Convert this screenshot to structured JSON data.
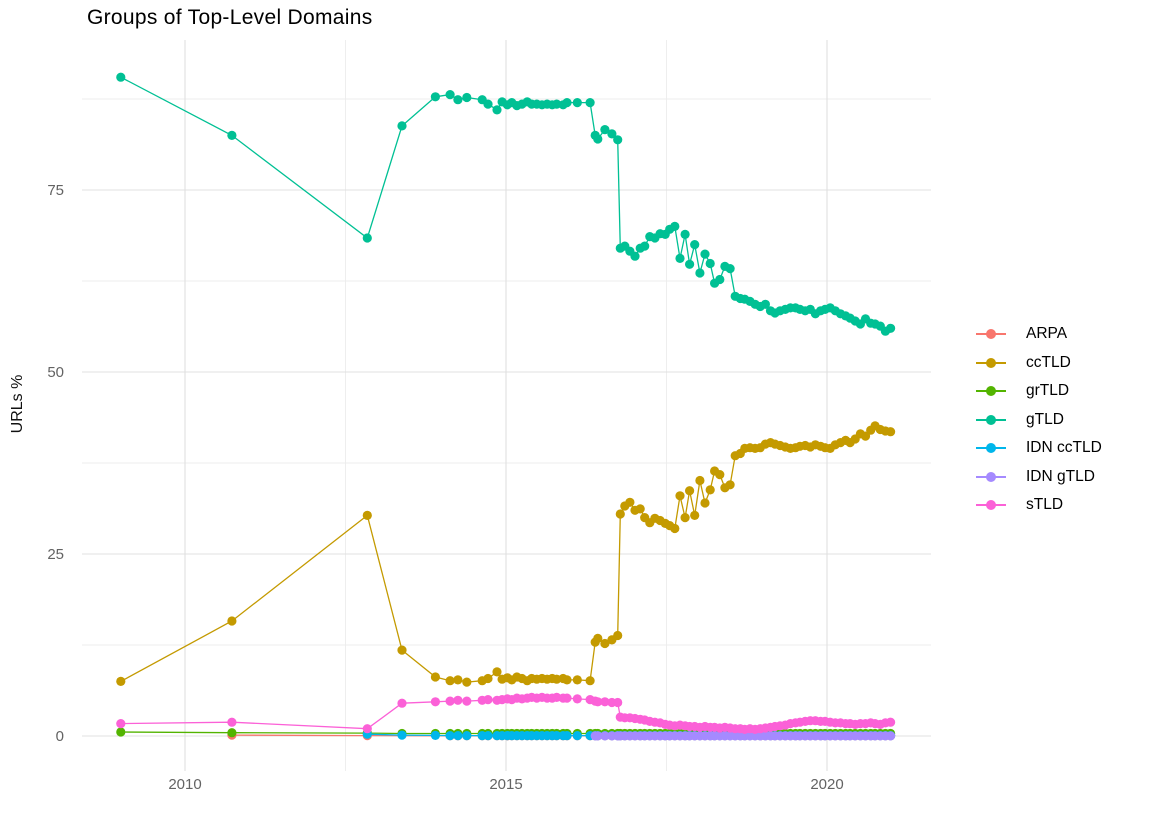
{
  "title": "Groups of Top-Level Domains",
  "axes": {
    "y_label": "URLs %",
    "x_ticks": [
      "2010",
      "2015",
      "2020"
    ],
    "x_tick_years": [
      2010,
      2015,
      2020
    ],
    "x_minor_years": [
      2012.5,
      2017.5
    ],
    "y_ticks": [
      "0",
      "25",
      "50",
      "75"
    ],
    "y_tick_values": [
      0,
      25,
      50,
      75
    ],
    "y_minor_values": [
      12.5,
      37.5,
      62.5,
      87.5
    ]
  },
  "legend": {
    "position": "right"
  },
  "chart_data": {
    "type": "line",
    "title": "Groups of Top-Level Domains",
    "xlabel": "",
    "ylabel": "URLs %",
    "x_range": [
      2008.4,
      2021.6
    ],
    "y_range": [
      -4.5,
      95.5
    ],
    "grid": true,
    "legend_position": "right",
    "x_dense": [
      2014.13,
      2014.25,
      2014.39,
      2014.63,
      2014.72,
      2014.86,
      2014.94,
      2015.02,
      2015.09,
      2015.17,
      2015.25,
      2015.33,
      2015.4,
      2015.48,
      2015.56,
      2015.64,
      2015.72,
      2015.79,
      2015.89,
      2015.95,
      2016.11,
      2016.31,
      2016.39,
      2016.43,
      2016.54,
      2016.65,
      2016.74,
      2016.78,
      2016.85,
      2016.93,
      2017.01,
      2017.09,
      2017.16,
      2017.24,
      2017.32,
      2017.4,
      2017.48,
      2017.55,
      2017.63,
      2017.71,
      2017.79,
      2017.86,
      2017.94,
      2018.02,
      2018.1,
      2018.18,
      2018.25,
      2018.33,
      2018.41,
      2018.49,
      2018.57,
      2018.65,
      2018.72,
      2018.8,
      2018.88,
      2018.96,
      2019.04,
      2019.12,
      2019.19,
      2019.27,
      2019.35,
      2019.43,
      2019.51,
      2019.58,
      2019.66,
      2019.74,
      2019.82,
      2019.9,
      2019.97,
      2020.05,
      2020.13,
      2020.21,
      2020.29,
      2020.36,
      2020.44,
      2020.52,
      2020.6,
      2020.68,
      2020.75,
      2020.83,
      2020.91,
      2020.99
    ],
    "series": [
      {
        "name": "ARPA",
        "color": "#F8766D",
        "sparse": [
          [
            2010.73,
            0.12
          ],
          [
            2012.84,
            0.06
          ]
        ],
        "dense_start": 0,
        "dense_const": 0.03
      },
      {
        "name": "ccTLD",
        "color": "#C49A00",
        "sparse": [
          [
            2009.0,
            7.5
          ],
          [
            2010.73,
            15.8
          ],
          [
            2012.84,
            30.3
          ],
          [
            2013.38,
            11.8
          ],
          [
            2013.9,
            8.1
          ]
        ],
        "dense_start": 0,
        "dense": [
          7.6,
          7.7,
          7.4,
          7.6,
          7.9,
          8.8,
          7.8,
          8.0,
          7.7,
          8.1,
          7.9,
          7.6,
          7.9,
          7.8,
          7.9,
          7.8,
          7.9,
          7.8,
          7.9,
          7.7,
          7.7,
          7.6,
          12.9,
          13.4,
          12.7,
          13.2,
          13.8,
          30.5,
          31.6,
          32.1,
          31.0,
          31.2,
          30.0,
          29.3,
          29.9,
          29.6,
          29.2,
          28.9,
          28.5,
          33.0,
          30.0,
          33.7,
          30.3,
          35.1,
          32.0,
          33.8,
          36.4,
          35.9,
          34.1,
          34.5,
          38.5,
          38.8,
          39.5,
          39.6,
          39.5,
          39.6,
          40.1,
          40.3,
          40.1,
          39.9,
          39.7,
          39.5,
          39.6,
          39.8,
          39.9,
          39.7,
          40.0,
          39.8,
          39.6,
          39.5,
          40.0,
          40.3,
          40.6,
          40.3,
          40.8,
          41.5,
          41.2,
          42.0,
          42.6,
          42.1,
          41.9,
          41.8
        ]
      },
      {
        "name": "grTLD",
        "color": "#53B400",
        "sparse": [
          [
            2009.0,
            0.55
          ],
          [
            2010.73,
            0.45
          ],
          [
            2012.84,
            0.4
          ],
          [
            2013.38,
            0.35
          ],
          [
            2013.9,
            0.35
          ]
        ],
        "dense_start": 0,
        "dense_const": 0.35
      },
      {
        "name": "gTLD",
        "color": "#00C094",
        "sparse": [
          [
            2009.0,
            90.5
          ],
          [
            2010.73,
            82.5
          ],
          [
            2012.84,
            68.4
          ],
          [
            2013.38,
            83.8
          ],
          [
            2013.9,
            87.8
          ]
        ],
        "dense_start": 0,
        "dense": [
          88.1,
          87.4,
          87.7,
          87.4,
          86.8,
          86.0,
          87.1,
          86.7,
          87.0,
          86.6,
          86.8,
          87.1,
          86.8,
          86.8,
          86.7,
          86.8,
          86.7,
          86.8,
          86.7,
          87.0,
          87.0,
          87.0,
          82.5,
          82.0,
          83.3,
          82.7,
          81.9,
          67.0,
          67.3,
          66.6,
          65.9,
          67.0,
          67.3,
          68.6,
          68.4,
          69.0,
          68.9,
          69.6,
          70.0,
          65.6,
          68.9,
          64.8,
          67.5,
          63.6,
          66.2,
          64.9,
          62.2,
          62.7,
          64.5,
          64.2,
          60.4,
          60.1,
          60.0,
          59.7,
          59.3,
          59.0,
          59.3,
          58.4,
          58.1,
          58.4,
          58.6,
          58.8,
          58.8,
          58.6,
          58.4,
          58.6,
          58.0,
          58.4,
          58.6,
          58.8,
          58.4,
          58.0,
          57.7,
          57.4,
          57.0,
          56.6,
          57.3,
          56.7,
          56.6,
          56.3,
          55.6,
          56.0
        ]
      },
      {
        "name": "IDN ccTLD",
        "color": "#00B6EB",
        "sparse": [
          [
            2012.84,
            0.25
          ],
          [
            2013.38,
            0.12
          ],
          [
            2013.9,
            0.08
          ]
        ],
        "dense_start": 0,
        "dense_const": 0.05
      },
      {
        "name": "IDN gTLD",
        "color": "#A58AFF",
        "sparse": [],
        "dense_start": 22,
        "dense_const": 0.02
      },
      {
        "name": "sTLD",
        "color": "#FB61D7",
        "sparse": [
          [
            2009.0,
            1.7
          ],
          [
            2010.73,
            1.9
          ],
          [
            2012.84,
            1.0
          ],
          [
            2013.38,
            4.5
          ],
          [
            2013.9,
            4.7
          ]
        ],
        "dense_start": 0,
        "dense": [
          4.8,
          4.9,
          4.8,
          4.9,
          5.0,
          4.9,
          5.0,
          5.1,
          5.0,
          5.2,
          5.1,
          5.2,
          5.3,
          5.2,
          5.3,
          5.2,
          5.2,
          5.3,
          5.2,
          5.2,
          5.1,
          5.0,
          4.8,
          4.7,
          4.7,
          4.6,
          4.6,
          2.6,
          2.5,
          2.5,
          2.4,
          2.3,
          2.2,
          2.0,
          1.9,
          1.8,
          1.6,
          1.5,
          1.4,
          1.5,
          1.4,
          1.3,
          1.3,
          1.2,
          1.3,
          1.2,
          1.2,
          1.1,
          1.2,
          1.1,
          1.0,
          1.0,
          0.9,
          1.0,
          0.9,
          1.0,
          1.1,
          1.2,
          1.3,
          1.4,
          1.5,
          1.7,
          1.8,
          1.9,
          2.0,
          2.1,
          2.1,
          2.0,
          2.0,
          1.9,
          1.8,
          1.8,
          1.7,
          1.7,
          1.6,
          1.7,
          1.7,
          1.8,
          1.7,
          1.6,
          1.8,
          1.9
        ]
      }
    ]
  }
}
